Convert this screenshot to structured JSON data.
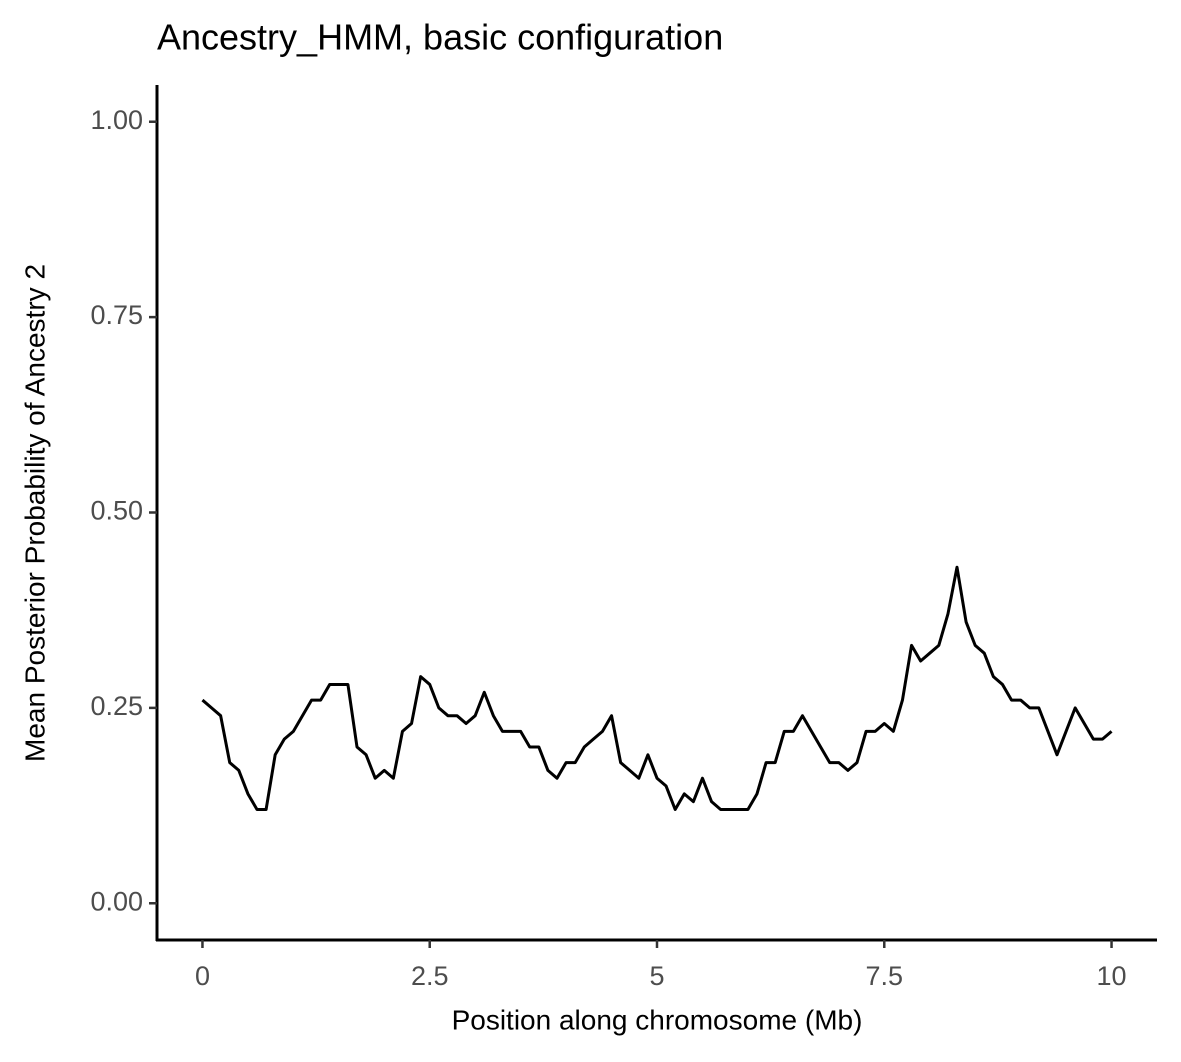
{
  "chart_data": {
    "type": "line",
    "title": "Ancestry_HMM, basic configuration",
    "x_label": "Position along chromosome (Mb)",
    "y_label": "Mean Posterior Probability of Ancestry 2",
    "xlim": [
      -0.5,
      10.5
    ],
    "ylim": [
      -0.047,
      1.047
    ],
    "xticks": [
      0,
      2.5,
      5,
      7.5,
      10
    ],
    "yticks": [
      {
        "value": 0,
        "label": "0.00"
      },
      {
        "value": 0.25,
        "label": "0.25"
      },
      {
        "value": 0.5,
        "label": "0.50"
      },
      {
        "value": 0.75,
        "label": "0.75"
      },
      {
        "value": 1,
        "label": "1.00"
      }
    ],
    "grid": false,
    "x": [
      0.0,
      0.1,
      0.2,
      0.3,
      0.4,
      0.5,
      0.6,
      0.7,
      0.8,
      0.9,
      1.0,
      1.1,
      1.2,
      1.3,
      1.4,
      1.5,
      1.6,
      1.7,
      1.8,
      1.9,
      2.0,
      2.1,
      2.2,
      2.3,
      2.4,
      2.5,
      2.6,
      2.7,
      2.8,
      2.9,
      3.0,
      3.1,
      3.2,
      3.3,
      3.4,
      3.5,
      3.6,
      3.7,
      3.8,
      3.9,
      4.0,
      4.1,
      4.2,
      4.3,
      4.4,
      4.5,
      4.6,
      4.7,
      4.8,
      4.9,
      5.0,
      5.1,
      5.2,
      5.3,
      5.4,
      5.5,
      5.6,
      5.7,
      5.8,
      5.9,
      6.0,
      6.1,
      6.2,
      6.3,
      6.4,
      6.5,
      6.6,
      6.7,
      6.8,
      6.9,
      7.0,
      7.1,
      7.2,
      7.3,
      7.4,
      7.5,
      7.6,
      7.7,
      7.8,
      7.9,
      8.0,
      8.1,
      8.2,
      8.3,
      8.4,
      8.5,
      8.6,
      8.7,
      8.8,
      8.9,
      9.0,
      9.1,
      9.2,
      9.3,
      9.4,
      9.5,
      9.6,
      9.7,
      9.8,
      9.9,
      10.0
    ],
    "series": [
      {
        "color": "#000000",
        "values": [
          0.26,
          0.25,
          0.24,
          0.18,
          0.17,
          0.14,
          0.12,
          0.12,
          0.19,
          0.21,
          0.22,
          0.24,
          0.26,
          0.26,
          0.28,
          0.28,
          0.28,
          0.2,
          0.19,
          0.16,
          0.17,
          0.16,
          0.22,
          0.23,
          0.29,
          0.28,
          0.25,
          0.24,
          0.24,
          0.23,
          0.24,
          0.27,
          0.24,
          0.22,
          0.22,
          0.22,
          0.2,
          0.2,
          0.17,
          0.16,
          0.18,
          0.18,
          0.2,
          0.21,
          0.22,
          0.24,
          0.18,
          0.17,
          0.16,
          0.19,
          0.16,
          0.15,
          0.12,
          0.14,
          0.13,
          0.16,
          0.13,
          0.12,
          0.12,
          0.12,
          0.12,
          0.14,
          0.18,
          0.18,
          0.22,
          0.22,
          0.24,
          0.22,
          0.2,
          0.18,
          0.18,
          0.17,
          0.18,
          0.22,
          0.22,
          0.23,
          0.22,
          0.26,
          0.33,
          0.31,
          0.32,
          0.33,
          0.37,
          0.43,
          0.36,
          0.33,
          0.32,
          0.29,
          0.28,
          0.26,
          0.26,
          0.25,
          0.25,
          0.22,
          0.19,
          0.22,
          0.25,
          0.23,
          0.21,
          0.21,
          0.22
        ]
      }
    ]
  }
}
